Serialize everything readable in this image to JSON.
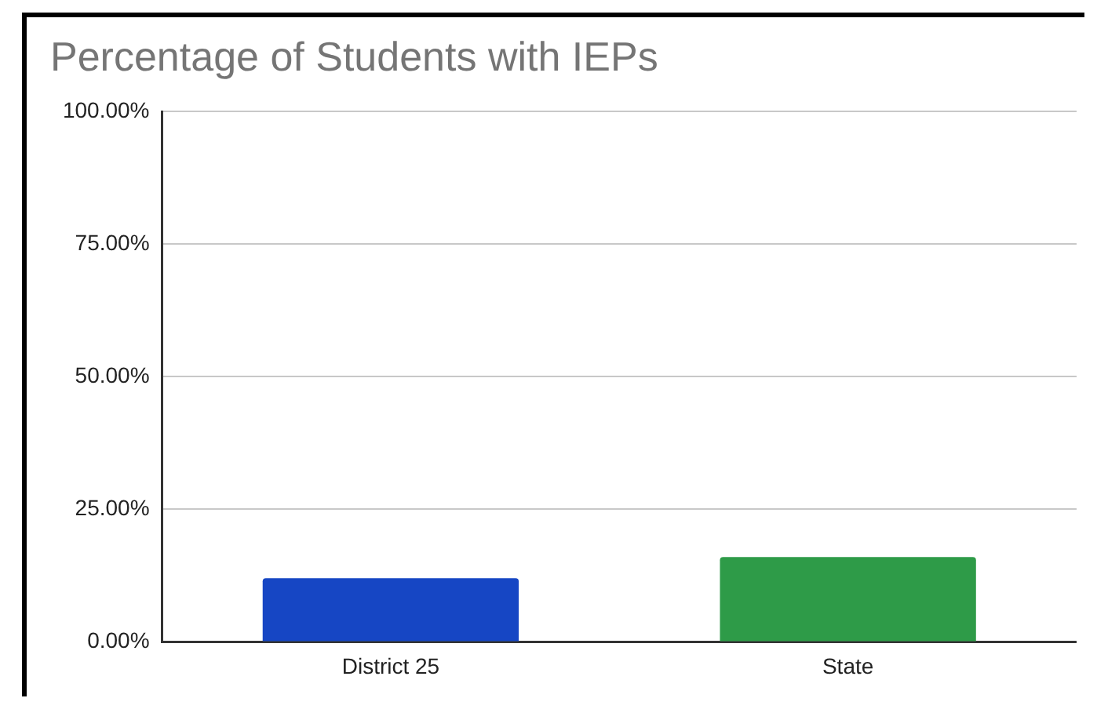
{
  "chart_data": {
    "type": "bar",
    "title": "Percentage of Students with IEPs",
    "categories": [
      "District 25",
      "State"
    ],
    "values": [
      12,
      16
    ],
    "colors": [
      "#1646c4",
      "#2e9b48"
    ],
    "ylim": [
      0,
      100
    ],
    "yticks": [
      {
        "value": 0,
        "label": "0.00%"
      },
      {
        "value": 25,
        "label": "25.00%"
      },
      {
        "value": 50,
        "label": "50.00%"
      },
      {
        "value": 75,
        "label": "75.00%"
      },
      {
        "value": 100,
        "label": "100.00%"
      }
    ],
    "grid": "y",
    "legend": false
  }
}
